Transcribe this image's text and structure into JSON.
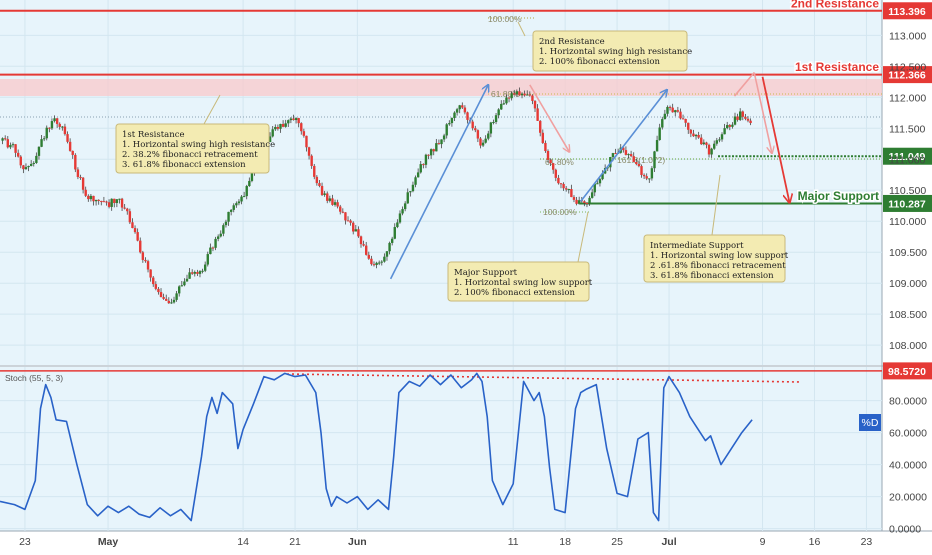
{
  "chart_data": [
    {
      "type": "candlestick",
      "panel": "price",
      "y_ticks": [
        108.0,
        108.5,
        109.0,
        109.5,
        110.0,
        110.5,
        111.0,
        111.5,
        112.0,
        112.5,
        113.0
      ],
      "ylim": [
        107.68,
        113.57
      ],
      "x_ticks": [
        {
          "label": "23",
          "t": 0
        },
        {
          "label": "May",
          "t": 8
        },
        {
          "label": "14",
          "t": 21
        },
        {
          "label": "21",
          "t": 26
        },
        {
          "label": "Jun",
          "t": 32
        },
        {
          "label": "11",
          "t": 47
        },
        {
          "label": "18",
          "t": 52
        },
        {
          "label": "25",
          "t": 57
        },
        {
          "label": "Jul",
          "t": 62
        },
        {
          "label": "9",
          "t": 71
        },
        {
          "label": "16",
          "t": 76
        },
        {
          "label": "23",
          "t": 81
        }
      ],
      "xlim": [
        -2.4,
        82.5
      ],
      "levels": [
        {
          "name": "2nd Resistance",
          "value_label": "113.396",
          "value": 113.396,
          "color": "#e53935"
        },
        {
          "name": "1st Resistance",
          "value_label": "112.366",
          "value": 112.366,
          "color": "#e53935"
        },
        {
          "name": "",
          "value_label": "111.049",
          "value": 111.049,
          "color": "#2e7d32"
        },
        {
          "name": "Major Support",
          "value_label": "110.287",
          "value": 110.287,
          "color": "#2e7d32"
        }
      ],
      "fib_labels": [
        "100.00%",
        "61.80%",
        "61.80%",
        "161.8(1.072)",
        "100.00%"
      ],
      "price_path": [
        [
          -2.4,
          111.3
        ],
        [
          -1,
          111.2
        ],
        [
          0,
          110.8
        ],
        [
          1,
          111.0
        ],
        [
          2,
          111.45
        ],
        [
          3,
          111.65
        ],
        [
          4,
          111.35
        ],
        [
          5,
          110.8
        ],
        [
          6,
          110.4
        ],
        [
          7,
          110.35
        ],
        [
          8,
          110.25
        ],
        [
          9,
          110.4
        ],
        [
          10,
          110.05
        ],
        [
          11,
          109.6
        ],
        [
          12,
          109.1
        ],
        [
          13,
          108.85
        ],
        [
          14,
          108.65
        ],
        [
          15,
          109.0
        ],
        [
          16,
          109.2
        ],
        [
          17,
          109.2
        ],
        [
          18,
          109.6
        ],
        [
          19,
          109.85
        ],
        [
          20,
          110.3
        ],
        [
          21,
          110.4
        ],
        [
          22,
          110.9
        ],
        [
          23,
          111.2
        ],
        [
          24,
          111.5
        ],
        [
          25,
          111.55
        ],
        [
          26,
          111.7
        ],
        [
          27,
          111.3
        ],
        [
          28,
          110.6
        ],
        [
          29,
          110.4
        ],
        [
          30,
          110.25
        ],
        [
          31,
          110.0
        ],
        [
          32,
          109.8
        ],
        [
          33,
          109.4
        ],
        [
          34,
          109.25
        ],
        [
          35,
          109.6
        ],
        [
          36,
          110.1
        ],
        [
          37,
          110.5
        ],
        [
          38,
          110.9
        ],
        [
          39,
          111.1
        ],
        [
          40,
          111.3
        ],
        [
          41,
          111.7
        ],
        [
          42,
          111.9
        ],
        [
          43,
          111.55
        ],
        [
          44,
          111.2
        ],
        [
          45,
          111.6
        ],
        [
          46,
          111.95
        ],
        [
          47,
          112.05
        ],
        [
          48,
          112.1
        ],
        [
          49,
          111.9
        ],
        [
          50,
          111.2
        ],
        [
          51,
          110.7
        ],
        [
          52,
          110.55
        ],
        [
          53,
          110.35
        ],
        [
          54,
          110.25
        ],
        [
          55,
          110.6
        ],
        [
          56,
          110.9
        ],
        [
          57,
          111.15
        ],
        [
          58,
          111.1
        ],
        [
          59,
          110.9
        ],
        [
          60,
          110.6
        ],
        [
          61,
          111.5
        ],
        [
          62,
          111.85
        ],
        [
          63,
          111.7
        ],
        [
          64,
          111.45
        ],
        [
          65,
          111.3
        ],
        [
          66,
          111.1
        ],
        [
          67,
          111.4
        ],
        [
          68,
          111.6
        ],
        [
          69,
          111.75
        ],
        [
          70,
          111.6
        ]
      ],
      "arrows": [
        {
          "from": [
            35.2,
            109.07
          ],
          "to": [
            44.6,
            112.2
          ],
          "color": "#5a8fd6"
        },
        {
          "from": [
            53.5,
            110.32
          ],
          "to": [
            61.8,
            112.12
          ],
          "color": "#5a8fd6"
        },
        {
          "from": [
            48.6,
            112.2
          ],
          "to": [
            52.4,
            111.12
          ],
          "color": "#f0a0a0"
        },
        {
          "from": [
            68.3,
            112.02
          ],
          "to": [
            70.2,
            112.4
          ],
          "color": "#f0a0a0"
        },
        {
          "from": [
            70.2,
            112.4
          ],
          "to": [
            71.9,
            111.1
          ],
          "color": "#f0a0a0"
        },
        {
          "from": [
            71.0,
            112.33
          ],
          "to": [
            73.6,
            110.3
          ],
          "color": "#e53935"
        }
      ],
      "callouts": [
        {
          "lines": [
            "2nd Resistance",
            "1. Horizontal swing high resistance",
            "2. 100% fibonacci extension"
          ]
        },
        {
          "lines": [
            "1st Resistance",
            "1. Horizontal swing high resistance",
            "2. 38.2% fibonacci retracement",
            "3. 61.8% fibonacci extension"
          ]
        },
        {
          "lines": [
            "Major Support",
            "1. Horizontal swing low support",
            "2. 100% fibonacci extension"
          ]
        },
        {
          "lines": [
            "Intermediate Support",
            "1. Horizontal swing low support",
            "2 .61.8% fibonacci retracement",
            "3. 61.8% fibonacci extension"
          ]
        }
      ]
    },
    {
      "type": "line",
      "panel": "oscillator",
      "title": "Stoch (55, 5, 3)",
      "series": [
        {
          "name": "%D",
          "color": "#2962c8"
        }
      ],
      "y_ticks": [
        0,
        20,
        40,
        60,
        80
      ],
      "y_tick_labels": [
        "0.0000",
        "20.0000",
        "40.0000",
        "60.0000",
        "80.0000"
      ],
      "ylim": [
        -1.5,
        101
      ],
      "level": {
        "value": 98.572,
        "value_label": "98.5720"
      },
      "x": [
        -2.4,
        -1,
        0,
        1,
        1.5,
        2,
        2.5,
        3,
        4,
        5,
        6,
        7,
        8,
        9,
        10,
        11,
        12,
        13,
        14,
        15,
        16,
        17,
        17.5,
        18,
        18.5,
        19,
        20,
        20.5,
        21,
        22,
        23,
        24,
        25,
        26,
        27,
        28,
        28.5,
        29,
        29.5,
        30,
        31,
        32,
        33,
        34,
        35,
        35.5,
        36,
        37,
        38,
        39,
        40,
        41,
        42,
        43,
        43.5,
        44,
        44.5,
        45,
        46,
        47,
        48,
        49,
        49.5,
        50,
        50.5,
        51,
        52,
        53,
        53.5,
        54,
        55,
        56,
        57,
        58,
        59,
        60,
        60.5,
        61,
        61.5,
        62,
        63,
        64,
        65,
        65.5,
        66,
        67,
        68,
        69,
        70
      ],
      "values": [
        17,
        15,
        12,
        30,
        75,
        90,
        82,
        68,
        67,
        40,
        15,
        8,
        14,
        10,
        14,
        9,
        7,
        13,
        8,
        12,
        5,
        45,
        70,
        82,
        72,
        85,
        78,
        50,
        62,
        78,
        95,
        93,
        97,
        95,
        96,
        85,
        60,
        25,
        14,
        20,
        16,
        20,
        12,
        18,
        12,
        45,
        85,
        92,
        89,
        96,
        90,
        96,
        88,
        93,
        97,
        92,
        70,
        30,
        15,
        28,
        92,
        80,
        85,
        70,
        38,
        12,
        10,
        75,
        85,
        87,
        90,
        50,
        22,
        20,
        56,
        60,
        10,
        5,
        88,
        95,
        85,
        70,
        60,
        55,
        58,
        40,
        50,
        60,
        68
      ]
    }
  ]
}
